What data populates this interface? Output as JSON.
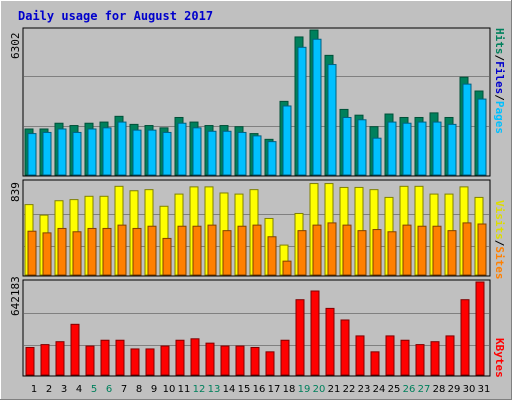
{
  "title": "Daily usage for August 2017",
  "colors": {
    "title": "#0000cc",
    "background": "#c0c0c0",
    "hits": "#00805c",
    "files": "#00c0ff",
    "visits": "#ffff00",
    "sites": "#ff8000",
    "kbytes": "#ff0000",
    "weekend_label": "#00805c",
    "weekday_label": "#000000"
  },
  "chart_data": [
    {
      "type": "bar",
      "panel": "hits-files",
      "x": [
        "1",
        "2",
        "3",
        "4",
        "5",
        "6",
        "7",
        "8",
        "9",
        "10",
        "11",
        "12",
        "13",
        "14",
        "15",
        "16",
        "17",
        "18",
        "19",
        "20",
        "21",
        "22",
        "23",
        "24",
        "25",
        "26",
        "27",
        "28",
        "29",
        "30",
        "31"
      ],
      "weekend_days": [
        "5",
        "6",
        "12",
        "13",
        "19",
        "20",
        "26",
        "27"
      ],
      "max_label": "6302",
      "ylim": [
        0,
        6302
      ],
      "legend": [
        {
          "text": "Hits",
          "color": "#00805c"
        },
        {
          "text": "/",
          "color": "#000000"
        },
        {
          "text": "Files",
          "color": "#0000cc"
        },
        {
          "text": "/",
          "color": "#000000"
        },
        {
          "text": "Pages",
          "color": "#00c0ff"
        }
      ],
      "series": [
        {
          "name": "Hits",
          "values": [
            2000,
            2000,
            2250,
            2150,
            2250,
            2300,
            2550,
            2200,
            2150,
            2050,
            2500,
            2300,
            2150,
            2150,
            2100,
            1800,
            1550,
            3200,
            6000,
            6300,
            5200,
            2850,
            2600,
            2100,
            2650,
            2500,
            2500,
            2700,
            2500,
            4250,
            3650
          ]
        },
        {
          "name": "Files",
          "values": [
            1800,
            1850,
            2000,
            1850,
            2000,
            2050,
            2300,
            1950,
            1950,
            1850,
            2250,
            2050,
            1900,
            1900,
            1850,
            1700,
            1450,
            3000,
            5550,
            5900,
            4800,
            2500,
            2400,
            1600,
            2300,
            2250,
            2300,
            2300,
            2200,
            3950,
            3300
          ]
        }
      ]
    },
    {
      "type": "bar",
      "panel": "visits-sites",
      "x": [
        "1",
        "2",
        "3",
        "4",
        "5",
        "6",
        "7",
        "8",
        "9",
        "10",
        "11",
        "12",
        "13",
        "14",
        "15",
        "16",
        "17",
        "18",
        "19",
        "20",
        "21",
        "22",
        "23",
        "24",
        "25",
        "26",
        "27",
        "28",
        "29",
        "30",
        "31"
      ],
      "max_label": "839",
      "ylim": [
        0,
        839
      ],
      "legend": [
        {
          "text": "Visits",
          "color": "#dddd00"
        },
        {
          "text": "/",
          "color": "#000000"
        },
        {
          "text": "Sites",
          "color": "#ff8000"
        }
      ],
      "series": [
        {
          "name": "Visits",
          "values": [
            635,
            540,
            670,
            680,
            710,
            710,
            800,
            760,
            770,
            620,
            730,
            795,
            795,
            740,
            730,
            770,
            510,
            270,
            555,
            825,
            825,
            790,
            790,
            770,
            700,
            800,
            800,
            730,
            730,
            795,
            700
          ]
        },
        {
          "name": "Sites",
          "values": [
            395,
            380,
            420,
            390,
            420,
            420,
            450,
            420,
            440,
            330,
            440,
            440,
            450,
            400,
            440,
            450,
            345,
            125,
            400,
            450,
            470,
            450,
            400,
            410,
            390,
            450,
            440,
            440,
            400,
            470,
            460
          ]
        }
      ]
    },
    {
      "type": "bar",
      "panel": "kbytes",
      "x": [
        "1",
        "2",
        "3",
        "4",
        "5",
        "6",
        "7",
        "8",
        "9",
        "10",
        "11",
        "12",
        "13",
        "14",
        "15",
        "16",
        "17",
        "18",
        "19",
        "20",
        "21",
        "22",
        "23",
        "24",
        "25",
        "26",
        "27",
        "28",
        "29",
        "30",
        "31"
      ],
      "max_label": "642183",
      "ylim": [
        0,
        642183
      ],
      "legend": [
        {
          "text": "KBytes",
          "color": "#ff0000"
        }
      ],
      "series": [
        {
          "name": "KBytes",
          "values": [
            190000,
            210000,
            230000,
            350000,
            200000,
            240000,
            240000,
            180000,
            180000,
            200000,
            240000,
            250000,
            220000,
            200000,
            200000,
            190000,
            160000,
            240000,
            520000,
            580000,
            460000,
            380000,
            270000,
            160000,
            270000,
            240000,
            210000,
            230000,
            270000,
            520000,
            642183
          ]
        }
      ]
    }
  ]
}
